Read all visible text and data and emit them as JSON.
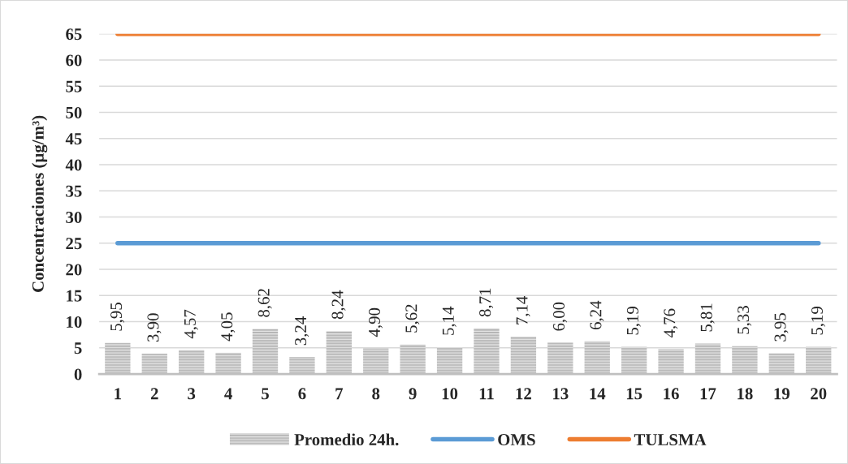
{
  "chart_data": {
    "type": "bar",
    "ylabel": "Concentraciones (µg/m³)",
    "categories": [
      "1",
      "2",
      "3",
      "4",
      "5",
      "6",
      "7",
      "8",
      "9",
      "10",
      "11",
      "12",
      "13",
      "14",
      "15",
      "16",
      "17",
      "18",
      "19",
      "20"
    ],
    "series": [
      {
        "name": "Promedio 24h.",
        "color": "#b4b4b4",
        "values": [
          5.95,
          3.9,
          4.57,
          4.05,
          8.62,
          3.24,
          8.24,
          4.9,
          5.62,
          5.14,
          8.71,
          7.14,
          6.0,
          6.24,
          5.19,
          4.76,
          5.81,
          5.33,
          3.95,
          5.19
        ],
        "value_labels": [
          "5,95",
          "3,90",
          "4,57",
          "4,05",
          "8,62",
          "3,24",
          "8,24",
          "4,90",
          "5,62",
          "5,14",
          "8,71",
          "7,14",
          "6,00",
          "6,24",
          "5,19",
          "4,76",
          "5,81",
          "5,33",
          "3,95",
          "5,19"
        ]
      },
      {
        "name": "OMS",
        "type": "line",
        "color": "#5b9bd5",
        "values": [
          25,
          25,
          25,
          25,
          25,
          25,
          25,
          25,
          25,
          25,
          25,
          25,
          25,
          25,
          25,
          25,
          25,
          25,
          25,
          25
        ]
      },
      {
        "name": "TULSMA",
        "type": "line",
        "color": "#ed7d31",
        "values": [
          65,
          65,
          65,
          65,
          65,
          65,
          65,
          65,
          65,
          65,
          65,
          65,
          65,
          65,
          65,
          65,
          65,
          65,
          65,
          65
        ]
      }
    ],
    "ylim": [
      0,
      65
    ],
    "yticks": [
      0,
      5,
      10,
      15,
      20,
      25,
      30,
      35,
      40,
      45,
      50,
      55,
      60,
      65
    ],
    "grid": "y",
    "legend": "bottom"
  }
}
